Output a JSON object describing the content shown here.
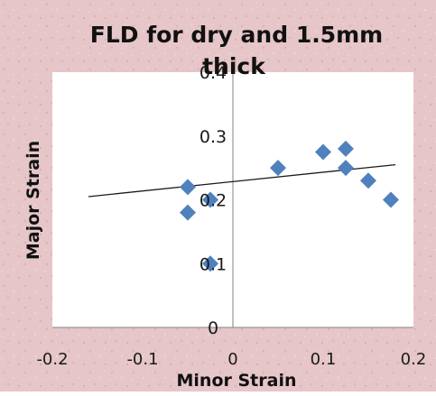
{
  "chart_data": {
    "type": "scatter",
    "title_line1": "FLD for dry and 1.5mm",
    "title_line2": "thick",
    "xlabel": "Minor Strain",
    "ylabel": "Major Strain",
    "xlim": [
      -0.2,
      0.2
    ],
    "ylim": [
      0,
      0.4
    ],
    "x_ticks": [
      "-0.2",
      "-0.1",
      "0",
      "0.1",
      "0.2"
    ],
    "y_ticks": [
      "0",
      "0.1",
      "0.2",
      "0.3",
      "0.4"
    ],
    "grid": false,
    "trendline": {
      "type": "linear",
      "x": [
        -0.16,
        0.18
      ],
      "y": [
        0.205,
        0.255
      ]
    },
    "points": [
      {
        "x": -0.05,
        "y": 0.22
      },
      {
        "x": -0.05,
        "y": 0.18
      },
      {
        "x": -0.025,
        "y": 0.2
      },
      {
        "x": -0.025,
        "y": 0.1
      },
      {
        "x": 0.05,
        "y": 0.25
      },
      {
        "x": 0.1,
        "y": 0.275
      },
      {
        "x": 0.125,
        "y": 0.28
      },
      {
        "x": 0.125,
        "y": 0.25
      },
      {
        "x": 0.15,
        "y": 0.23
      },
      {
        "x": 0.175,
        "y": 0.2
      }
    ],
    "colors": {
      "marker": "#4f81bd",
      "frame_background": "#e6c6c9",
      "plot_background": "#ffffff",
      "axis": "#808080",
      "trendline": "#1a1a1a"
    }
  }
}
